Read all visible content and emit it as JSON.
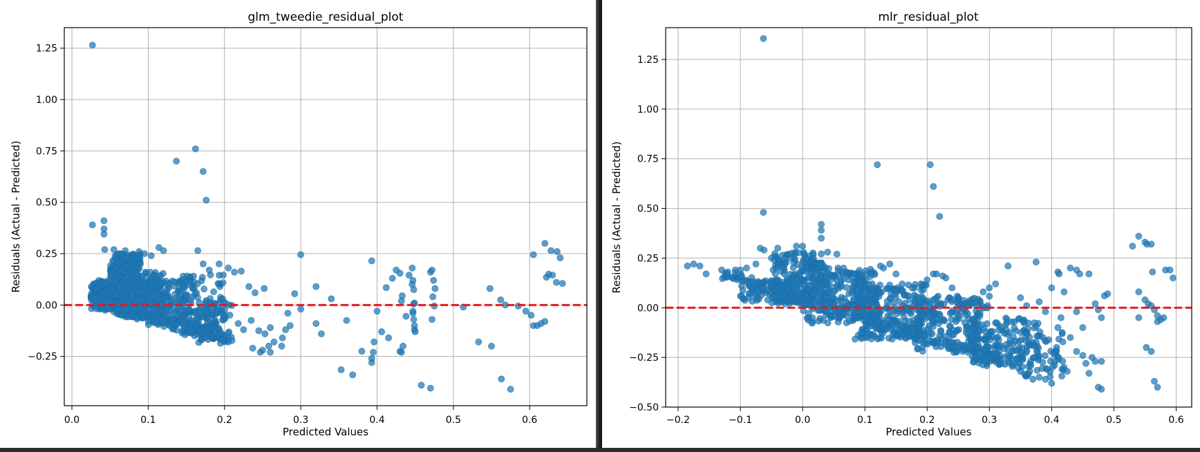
{
  "colors": {
    "points": "#1f77b4",
    "zero_line": "#e41a1c",
    "grid": "#b0b0b0"
  },
  "chart_data": [
    {
      "type": "scatter",
      "title": "glm_tweedie_residual_plot",
      "xlabel": "Predicted Values",
      "ylabel": "Residuals (Actual - Predicted)",
      "xlim": [
        -0.01,
        0.675
      ],
      "ylim": [
        -0.49,
        1.35
      ],
      "xticks": [
        0.0,
        0.1,
        0.2,
        0.3,
        0.4,
        0.5,
        0.6
      ],
      "xtick_labels": [
        "0.0",
        "0.1",
        "0.2",
        "0.3",
        "0.4",
        "0.5",
        "0.6"
      ],
      "yticks": [
        -0.25,
        0.0,
        0.25,
        0.5,
        0.75,
        1.0,
        1.25
      ],
      "ytick_labels": [
        "−0.25",
        "0.00",
        "0.25",
        "0.50",
        "0.75",
        "1.00",
        "1.25"
      ],
      "grid": true,
      "reference_line": {
        "y": 0,
        "style": "dashed"
      },
      "points": [
        [
          0.027,
          1.265
        ],
        [
          0.162,
          0.76
        ],
        [
          0.137,
          0.7
        ],
        [
          0.172,
          0.65
        ],
        [
          0.176,
          0.51
        ],
        [
          0.027,
          0.39
        ],
        [
          0.042,
          0.41
        ],
        [
          0.042,
          0.37
        ],
        [
          0.042,
          0.345
        ],
        [
          0.043,
          0.27
        ],
        [
          0.055,
          0.27
        ],
        [
          0.07,
          0.265
        ],
        [
          0.088,
          0.26
        ],
        [
          0.095,
          0.25
        ],
        [
          0.104,
          0.24
        ],
        [
          0.114,
          0.28
        ],
        [
          0.12,
          0.265
        ],
        [
          0.165,
          0.265
        ],
        [
          0.172,
          0.2
        ],
        [
          0.18,
          0.17
        ],
        [
          0.193,
          0.2
        ],
        [
          0.205,
          0.18
        ],
        [
          0.213,
          0.16
        ],
        [
          0.222,
          0.165
        ],
        [
          0.232,
          0.09
        ],
        [
          0.24,
          0.06
        ],
        [
          0.252,
          0.08
        ],
        [
          0.3,
          0.245
        ],
        [
          0.292,
          0.055
        ],
        [
          0.32,
          0.09
        ],
        [
          0.34,
          0.03
        ],
        [
          0.327,
          -0.14
        ],
        [
          0.32,
          -0.09
        ],
        [
          0.3,
          -0.02
        ],
        [
          0.283,
          -0.04
        ],
        [
          0.276,
          -0.16
        ],
        [
          0.275,
          -0.2
        ],
        [
          0.265,
          -0.18
        ],
        [
          0.26,
          -0.23
        ],
        [
          0.258,
          -0.2
        ],
        [
          0.25,
          -0.22
        ],
        [
          0.247,
          -0.23
        ],
        [
          0.237,
          -0.21
        ],
        [
          0.225,
          -0.12
        ],
        [
          0.218,
          -0.09
        ],
        [
          0.205,
          -0.18
        ],
        [
          0.197,
          -0.17
        ],
        [
          0.19,
          -0.15
        ],
        [
          0.235,
          -0.075
        ],
        [
          0.245,
          -0.125
        ],
        [
          0.253,
          -0.14
        ],
        [
          0.28,
          -0.12
        ],
        [
          0.286,
          -0.1
        ],
        [
          0.26,
          -0.11
        ],
        [
          0.353,
          -0.315
        ],
        [
          0.368,
          -0.34
        ],
        [
          0.36,
          -0.075
        ],
        [
          0.38,
          -0.225
        ],
        [
          0.393,
          0.215
        ],
        [
          0.393,
          -0.26
        ],
        [
          0.393,
          -0.28
        ],
        [
          0.395,
          -0.23
        ],
        [
          0.396,
          -0.18
        ],
        [
          0.4,
          -0.03
        ],
        [
          0.406,
          -0.13
        ],
        [
          0.415,
          -0.16
        ],
        [
          0.412,
          0.085
        ],
        [
          0.42,
          0.13
        ],
        [
          0.425,
          0.17
        ],
        [
          0.43,
          0.155
        ],
        [
          0.433,
          0.045
        ],
        [
          0.432,
          0.02
        ],
        [
          0.43,
          -0.225
        ],
        [
          0.432,
          -0.23
        ],
        [
          0.434,
          -0.2
        ],
        [
          0.438,
          -0.055
        ],
        [
          0.442,
          0.145
        ],
        [
          0.446,
          0.18
        ],
        [
          0.446,
          0.1
        ],
        [
          0.447,
          0.12
        ],
        [
          0.448,
          0.075
        ],
        [
          0.447,
          -0.03
        ],
        [
          0.448,
          -0.07
        ],
        [
          0.449,
          -0.1
        ],
        [
          0.449,
          -0.12
        ],
        [
          0.45,
          -0.13
        ],
        [
          0.447,
          -0.04
        ],
        [
          0.448,
          0.005
        ],
        [
          0.449,
          0.01
        ],
        [
          0.47,
          0.16
        ],
        [
          0.472,
          0.17
        ],
        [
          0.474,
          0.12
        ],
        [
          0.476,
          0.08
        ],
        [
          0.473,
          0.04
        ],
        [
          0.475,
          -0.005
        ],
        [
          0.472,
          -0.07
        ],
        [
          0.458,
          -0.39
        ],
        [
          0.47,
          -0.405
        ],
        [
          0.513,
          -0.01
        ],
        [
          0.533,
          -0.18
        ],
        [
          0.548,
          0.08
        ],
        [
          0.55,
          -0.2
        ],
        [
          0.562,
          0.025
        ],
        [
          0.568,
          0.0
        ],
        [
          0.575,
          -0.41
        ],
        [
          0.563,
          -0.36
        ],
        [
          0.585,
          -0.005
        ],
        [
          0.595,
          -0.03
        ],
        [
          0.602,
          -0.05
        ],
        [
          0.605,
          0.245
        ],
        [
          0.605,
          -0.1
        ],
        [
          0.61,
          -0.1
        ],
        [
          0.615,
          -0.09
        ],
        [
          0.62,
          -0.08
        ],
        [
          0.622,
          0.135
        ],
        [
          0.625,
          0.15
        ],
        [
          0.63,
          0.145
        ],
        [
          0.635,
          0.11
        ],
        [
          0.64,
          0.23
        ],
        [
          0.643,
          0.105
        ],
        [
          0.62,
          0.3
        ],
        [
          0.628,
          0.265
        ],
        [
          0.636,
          0.26
        ]
      ],
      "clusters": [
        {
          "x": [
            0.025,
            0.06
          ],
          "y": [
            -0.02,
            0.12
          ],
          "n": 220
        },
        {
          "x": [
            0.05,
            0.09
          ],
          "y": [
            0.0,
            0.25
          ],
          "n": 260
        },
        {
          "x": [
            0.06,
            0.12
          ],
          "y": [
            -0.06,
            0.16
          ],
          "n": 220
        },
        {
          "x": [
            0.09,
            0.15
          ],
          "y": [
            -0.1,
            0.12
          ],
          "n": 150
        },
        {
          "x": [
            0.14,
            0.2
          ],
          "y": [
            -0.15,
            0.15
          ],
          "n": 120
        },
        {
          "x": [
            0.16,
            0.21
          ],
          "y": [
            -0.19,
            0.02
          ],
          "n": 70
        }
      ],
      "lower_edge": {
        "x": [
          0.025,
          0.205
        ],
        "y": [
          -0.01,
          -0.19
        ],
        "n": 200
      }
    },
    {
      "type": "scatter",
      "title": "mlr_residual_plot",
      "xlabel": "Predicted Values",
      "ylabel": "Residuals (Actual - Predicted)",
      "xlim": [
        -0.22,
        0.625
      ],
      "ylim": [
        -0.5,
        1.41
      ],
      "xticks": [
        -0.2,
        -0.1,
        0.0,
        0.1,
        0.2,
        0.3,
        0.4,
        0.5,
        0.6
      ],
      "xtick_labels": [
        "−0.2",
        "−0.1",
        "0.0",
        "0.1",
        "0.2",
        "0.3",
        "0.4",
        "0.5",
        "0.6"
      ],
      "yticks": [
        -0.5,
        -0.25,
        0.0,
        0.25,
        0.5,
        0.75,
        1.0,
        1.25
      ],
      "ytick_labels": [
        "−0.50",
        "−0.25",
        "0.00",
        "0.25",
        "0.50",
        "0.75",
        "1.00",
        "1.25"
      ],
      "grid": true,
      "reference_line": {
        "y": 0,
        "style": "dashed"
      },
      "points": [
        [
          -0.063,
          1.355
        ],
        [
          0.12,
          0.72
        ],
        [
          0.205,
          0.72
        ],
        [
          0.21,
          0.61
        ],
        [
          0.22,
          0.46
        ],
        [
          -0.063,
          0.48
        ],
        [
          -0.185,
          0.21
        ],
        [
          -0.175,
          0.22
        ],
        [
          -0.165,
          0.21
        ],
        [
          -0.155,
          0.17
        ],
        [
          -0.13,
          0.19
        ],
        [
          -0.12,
          0.18
        ],
        [
          -0.108,
          0.19
        ],
        [
          -0.1,
          0.19
        ],
        [
          -0.09,
          0.2
        ],
        [
          -0.075,
          0.22
        ],
        [
          -0.068,
          0.3
        ],
        [
          -0.062,
          0.29
        ],
        [
          -0.05,
          0.25
        ],
        [
          -0.04,
          0.3
        ],
        [
          -0.03,
          0.2
        ],
        [
          -0.02,
          0.25
        ],
        [
          -0.01,
          0.31
        ],
        [
          0.0,
          0.31
        ],
        [
          0.03,
          0.42
        ],
        [
          0.03,
          0.39
        ],
        [
          0.03,
          0.35
        ],
        [
          0.04,
          0.28
        ],
        [
          0.055,
          0.27
        ],
        [
          0.082,
          0.17
        ],
        [
          0.095,
          0.16
        ],
        [
          0.11,
          0.17
        ],
        [
          0.125,
          0.21
        ],
        [
          0.13,
          0.2
        ],
        [
          0.14,
          0.22
        ],
        [
          0.15,
          0.17
        ],
        [
          0.16,
          0.12
        ],
        [
          0.17,
          0.06
        ],
        [
          0.18,
          0.1
        ],
        [
          0.19,
          0.12
        ],
        [
          0.2,
          0.14
        ],
        [
          0.21,
          0.17
        ],
        [
          0.215,
          0.17
        ],
        [
          0.225,
          0.16
        ],
        [
          0.23,
          0.15
        ],
        [
          0.24,
          0.1
        ],
        [
          0.25,
          0.05
        ],
        [
          0.26,
          0.02
        ],
        [
          0.27,
          0.02
        ],
        [
          0.28,
          0.03
        ],
        [
          0.29,
          0.08
        ],
        [
          0.3,
          0.1
        ],
        [
          0.31,
          0.12
        ],
        [
          0.33,
          0.21
        ],
        [
          0.35,
          0.05
        ],
        [
          0.36,
          0.01
        ],
        [
          0.375,
          0.23
        ],
        [
          0.38,
          0.03
        ],
        [
          0.39,
          -0.02
        ],
        [
          0.4,
          0.1
        ],
        [
          0.41,
          0.18
        ],
        [
          0.412,
          0.17
        ],
        [
          0.42,
          0.08
        ],
        [
          0.43,
          0.2
        ],
        [
          0.44,
          0.19
        ],
        [
          0.445,
          0.17
        ],
        [
          0.46,
          0.17
        ],
        [
          0.47,
          0.02
        ],
        [
          0.475,
          -0.01
        ],
        [
          0.48,
          -0.05
        ],
        [
          0.485,
          0.06
        ],
        [
          0.49,
          0.07
        ],
        [
          0.34,
          -0.28
        ],
        [
          0.35,
          -0.32
        ],
        [
          0.36,
          -0.34
        ],
        [
          0.37,
          -0.36
        ],
        [
          0.38,
          -0.35
        ],
        [
          0.39,
          -0.36
        ],
        [
          0.4,
          -0.38
        ],
        [
          0.405,
          -0.27
        ],
        [
          0.42,
          -0.3
        ],
        [
          0.425,
          -0.32
        ],
        [
          0.44,
          -0.22
        ],
        [
          0.45,
          -0.24
        ],
        [
          0.455,
          -0.28
        ],
        [
          0.46,
          -0.33
        ],
        [
          0.465,
          -0.25
        ],
        [
          0.47,
          -0.27
        ],
        [
          0.48,
          -0.27
        ],
        [
          0.475,
          -0.4
        ],
        [
          0.48,
          -0.41
        ],
        [
          0.41,
          -0.1
        ],
        [
          0.415,
          -0.05
        ],
        [
          0.43,
          -0.15
        ],
        [
          0.44,
          -0.02
        ],
        [
          0.45,
          -0.1
        ],
        [
          0.53,
          0.31
        ],
        [
          0.54,
          0.36
        ],
        [
          0.55,
          0.33
        ],
        [
          0.553,
          0.32
        ],
        [
          0.56,
          0.32
        ],
        [
          0.562,
          0.18
        ],
        [
          0.54,
          0.08
        ],
        [
          0.54,
          -0.05
        ],
        [
          0.55,
          0.04
        ],
        [
          0.555,
          0.02
        ],
        [
          0.56,
          0.01
        ],
        [
          0.565,
          -0.01
        ],
        [
          0.57,
          -0.04
        ],
        [
          0.575,
          -0.06
        ],
        [
          0.58,
          -0.05
        ],
        [
          0.583,
          0.19
        ],
        [
          0.59,
          0.19
        ],
        [
          0.595,
          0.15
        ],
        [
          0.552,
          -0.2
        ],
        [
          0.56,
          -0.22
        ],
        [
          0.565,
          -0.37
        ],
        [
          0.57,
          -0.4
        ],
        [
          0.57,
          -0.07
        ]
      ],
      "clusters": [
        {
          "x": [
            -0.05,
            0.04
          ],
          "y": [
            0.02,
            0.28
          ],
          "n": 200
        },
        {
          "x": [
            0.0,
            0.12
          ],
          "y": [
            -0.08,
            0.2
          ],
          "n": 260
        },
        {
          "x": [
            0.08,
            0.2
          ],
          "y": [
            -0.16,
            0.12
          ],
          "n": 230
        },
        {
          "x": [
            0.18,
            0.3
          ],
          "y": [
            -0.22,
            0.06
          ],
          "n": 200
        },
        {
          "x": [
            0.27,
            0.38
          ],
          "y": [
            -0.3,
            -0.05
          ],
          "n": 150
        },
        {
          "x": [
            0.34,
            0.42
          ],
          "y": [
            -0.35,
            -0.12
          ],
          "n": 60
        },
        {
          "x": [
            -0.1,
            0.0
          ],
          "y": [
            0.03,
            0.14
          ],
          "n": 90
        }
      ],
      "lower_edge": {
        "x": [
          -0.13,
          0.32
        ],
        "y": [
          0.14,
          -0.3
        ],
        "n": 220
      }
    }
  ]
}
